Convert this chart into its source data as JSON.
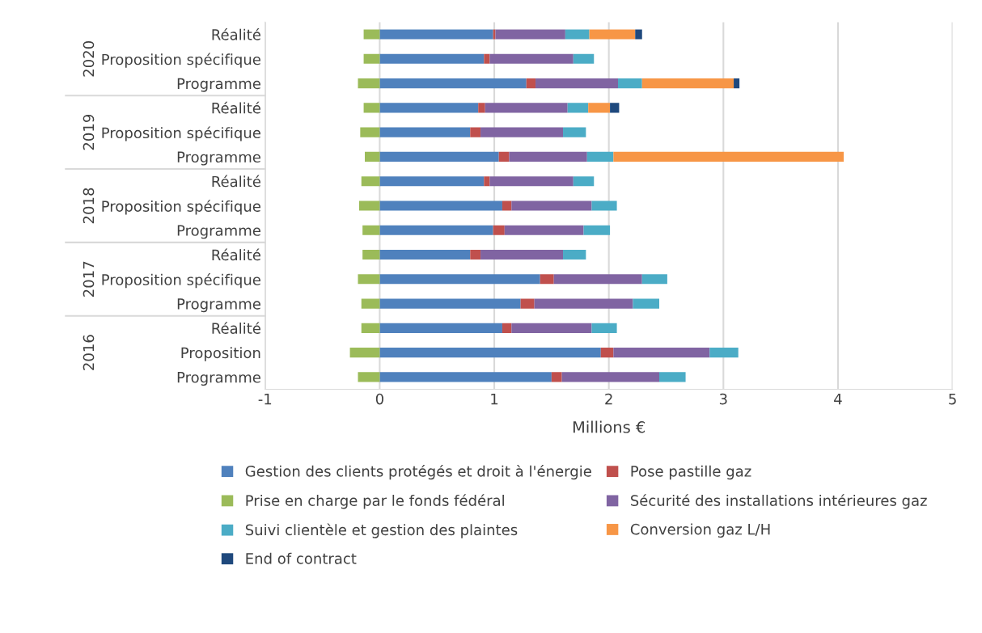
{
  "chart_data": {
    "type": "bar",
    "orientation": "horizontal",
    "stacked": true,
    "xlabel": "Millions €",
    "categories": [
      "Réalité",
      "Proposition spécifique",
      "Programme",
      "Réalité",
      "Proposition spécifique",
      "Programme",
      "Réalité",
      "Proposition spécifique",
      "Programme",
      "Réalité",
      "Proposition spécifique",
      "Programme",
      "Réalité",
      "Proposition",
      "Programme"
    ],
    "annotations": [
      "2020",
      "2019",
      "2018",
      "2017",
      "2016"
    ],
    "series": [
      {
        "name": "Gestion des clients protégés et droit à l'énergie",
        "color": "#4f81bd",
        "values": [
          0.99,
          0.91,
          1.28,
          0.86,
          0.79,
          1.04,
          0.91,
          1.07,
          0.99,
          0.79,
          1.4,
          1.23,
          1.07,
          1.93,
          1.5
        ]
      },
      {
        "name": "Pose pastille gaz",
        "color": "#c0504d",
        "values": [
          0.02,
          0.05,
          0.08,
          0.06,
          0.09,
          0.09,
          0.05,
          0.08,
          0.1,
          0.09,
          0.12,
          0.12,
          0.08,
          0.11,
          0.09
        ]
      },
      {
        "name": "Prise en charge par le fonds fédéral",
        "color": "#9bbb59",
        "values": [
          -0.14,
          -0.14,
          -0.19,
          -0.14,
          -0.17,
          -0.13,
          -0.16,
          -0.18,
          -0.15,
          -0.15,
          -0.19,
          -0.16,
          -0.16,
          -0.26,
          -0.19
        ]
      },
      {
        "name": "Sécurité des installations intérieures gaz",
        "color": "#8064a2",
        "values": [
          0.61,
          0.73,
          0.72,
          0.72,
          0.72,
          0.68,
          0.73,
          0.7,
          0.69,
          0.72,
          0.77,
          0.86,
          0.7,
          0.84,
          0.85
        ]
      },
      {
        "name": "Suivi clientèle et gestion des plaintes",
        "color": "#4bacc6",
        "values": [
          0.21,
          0.18,
          0.21,
          0.18,
          0.2,
          0.23,
          0.18,
          0.22,
          0.23,
          0.2,
          0.22,
          0.23,
          0.22,
          0.25,
          0.23
        ]
      },
      {
        "name": "Conversion gaz L/H",
        "color": "#f79646",
        "values": [
          0.4,
          null,
          0.8,
          0.19,
          null,
          2.01,
          null,
          null,
          null,
          null,
          null,
          null,
          null,
          null,
          null
        ]
      },
      {
        "name": "End of contract",
        "color": "#1f497d",
        "values": [
          0.06,
          null,
          0.05,
          0.08,
          null,
          null,
          null,
          null,
          null,
          null,
          null,
          null,
          null,
          null,
          null
        ]
      }
    ],
    "xlim": [
      -1,
      5
    ],
    "xticks": [
      -1,
      0,
      1,
      2,
      3,
      4,
      5
    ],
    "grid": "x",
    "legend": "bottom"
  }
}
